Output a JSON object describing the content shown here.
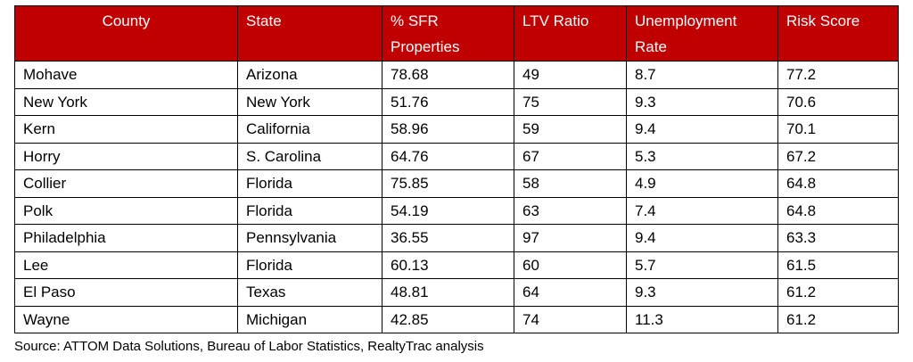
{
  "table": {
    "columns": [
      "County",
      "State",
      "% SFR Properties",
      "LTV Ratio",
      "Unemployment Rate",
      "Risk Score"
    ],
    "rows": [
      [
        "Mohave",
        "Arizona",
        "78.68",
        "49",
        "8.7",
        "77.2"
      ],
      [
        "New York",
        "New York",
        "51.76",
        "75",
        "9.3",
        "70.6"
      ],
      [
        "Kern",
        "California",
        "58.96",
        "59",
        "9.4",
        "70.1"
      ],
      [
        "Horry",
        "S. Carolina",
        "64.76",
        "67",
        "5.3",
        "67.2"
      ],
      [
        "Collier",
        "Florida",
        "75.85",
        "58",
        "4.9",
        "64.8"
      ],
      [
        "Polk",
        "Florida",
        "54.19",
        "63",
        "7.4",
        "64.8"
      ],
      [
        "Philadelphia",
        "Pennsylvania",
        "36.55",
        "97",
        "9.4",
        "63.3"
      ],
      [
        "Lee",
        "Florida",
        "60.13",
        "60",
        "5.7",
        "61.5"
      ],
      [
        "El Paso",
        "Texas",
        "48.81",
        "64",
        "9.3",
        "61.2"
      ],
      [
        "Wayne",
        "Michigan",
        "42.85",
        "74",
        "11.3",
        "61.2"
      ]
    ]
  },
  "source": "Source: ATTOM Data Solutions, Bureau of Labor Statistics, RealtyTrac analysis",
  "colors": {
    "header_background": "#c00000",
    "header_text": "#ffffff"
  }
}
